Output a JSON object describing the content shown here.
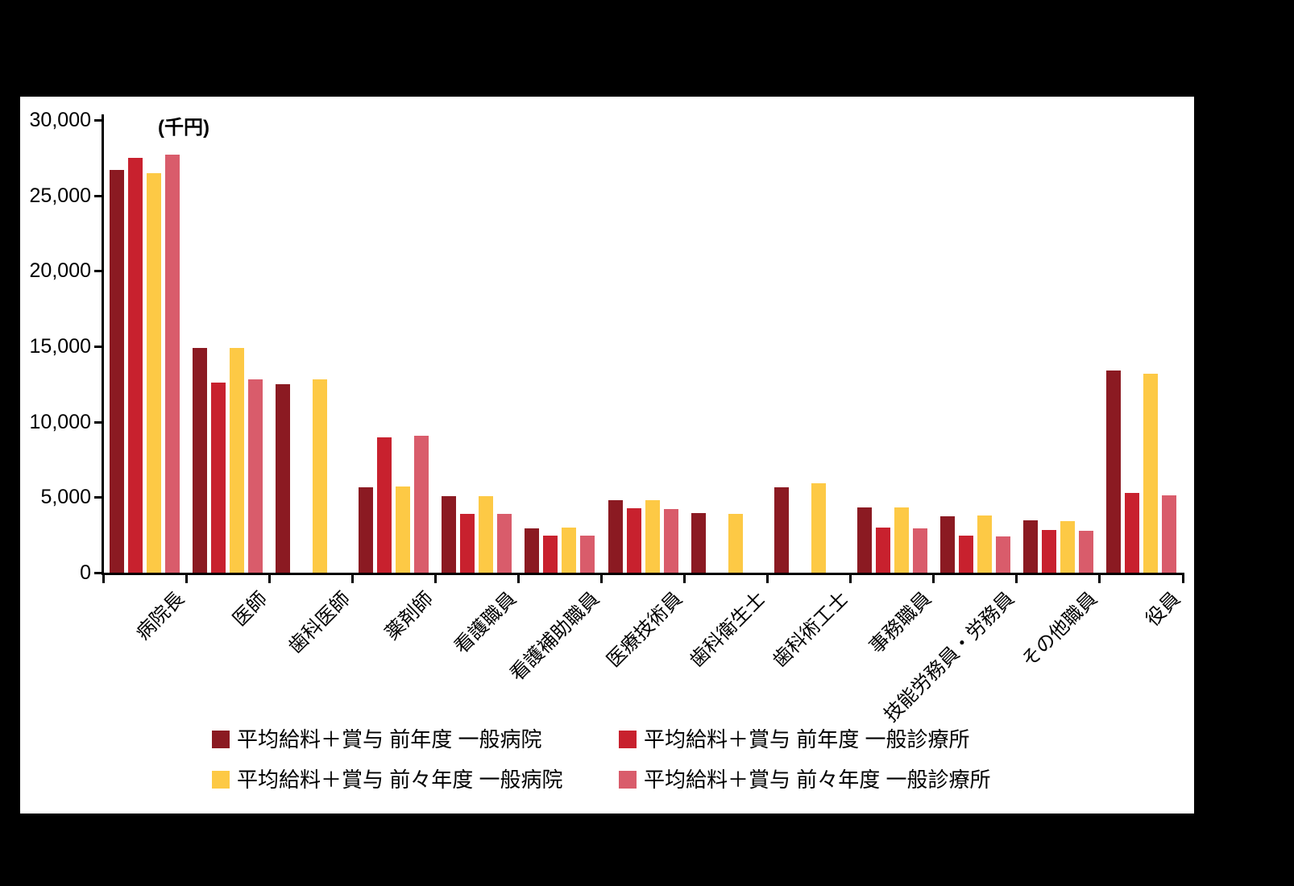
{
  "chart_data": {
    "type": "bar",
    "unit_label": "(千円)",
    "categories": [
      "病院長",
      "医師",
      "歯科医師",
      "薬剤師",
      "看護職員",
      "看護補助職員",
      "医療技術員",
      "歯科衛生士",
      "歯科術工士",
      "事務職員",
      "技能労務員・労務員",
      "その他職員",
      "役員"
    ],
    "series": [
      {
        "name": "平均給料＋賞与 前年度 一般病院",
        "color": "#8B1A22",
        "values": [
          26700,
          14900,
          12500,
          5650,
          5050,
          2950,
          4800,
          3950,
          5650,
          4300,
          3750,
          3450,
          13400
        ]
      },
      {
        "name": "平均給料＋賞与 前年度 一般診療所",
        "color": "#C8212E",
        "values": [
          27500,
          12600,
          null,
          8950,
          3900,
          2450,
          4250,
          null,
          null,
          3000,
          2450,
          2850,
          5300
        ]
      },
      {
        "name": "平均給料＋賞与 前々年度 一般病院",
        "color": "#FDC945",
        "values": [
          26500,
          14900,
          12800,
          5700,
          5050,
          3000,
          4800,
          3900,
          5900,
          4300,
          3800,
          3400,
          13200
        ]
      },
      {
        "name": "平均給料＋賞与 前々年度 一般診療所",
        "color": "#D95C6B",
        "values": [
          27700,
          12800,
          null,
          9100,
          3900,
          2450,
          4200,
          null,
          null,
          2950,
          2400,
          2800,
          5100
        ]
      }
    ],
    "ylim": [
      0,
      30000
    ],
    "ytick_step": 5000,
    "ytick_labels": [
      "0",
      "5,000",
      "10,000",
      "15,000",
      "20,000",
      "25,000",
      "30,000"
    ],
    "grid": false,
    "legend_position": "bottom",
    "background": "#000000",
    "panel_background": "#FFFFFF"
  }
}
